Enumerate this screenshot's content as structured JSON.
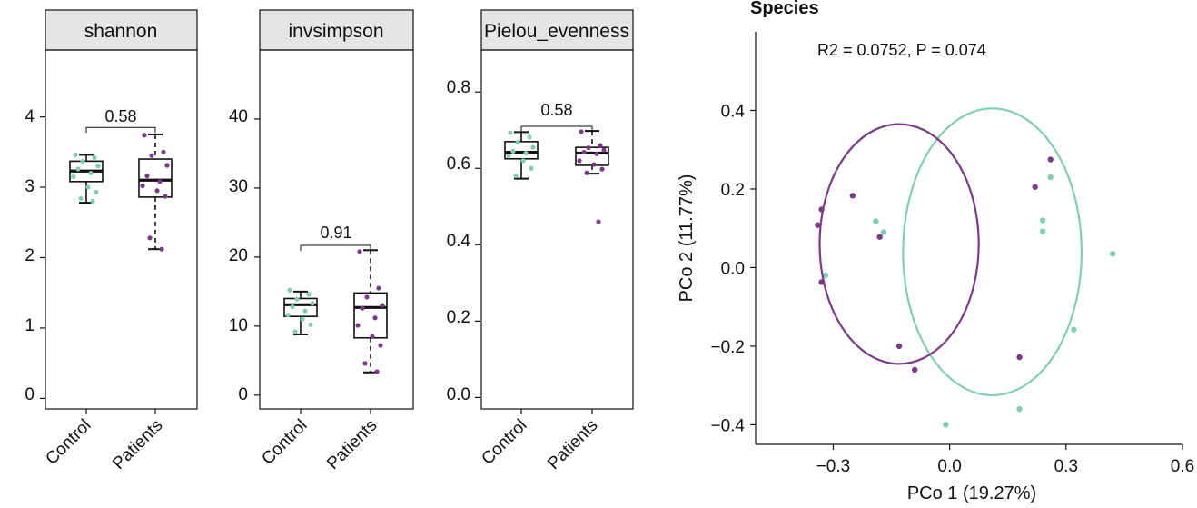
{
  "colors": {
    "control": "#7fcdb4",
    "patients": "#7b3a88",
    "strip_fill": "#e5e5e5",
    "ink": "#111111"
  },
  "chart_data": [
    {
      "type": "box",
      "strip_label": "shannon",
      "categories": [
        "Control",
        "Patients"
      ],
      "ylim": [
        -0.15,
        4.95
      ],
      "yticks": [
        "0",
        "1",
        "2",
        "3",
        "4"
      ],
      "boxes": [
        {
          "min": 2.78,
          "q1": 3.08,
          "median": 3.23,
          "q3": 3.37,
          "max": 3.46
        },
        {
          "min": 2.12,
          "q1": 2.86,
          "median": 3.1,
          "q3": 3.4,
          "max": 3.75
        }
      ],
      "points": [
        [
          3.46,
          3.42,
          3.37,
          3.3,
          3.26,
          3.2,
          3.15,
          3.0,
          2.93,
          2.84,
          2.8
        ],
        [
          3.74,
          3.5,
          3.45,
          3.31,
          3.16,
          3.08,
          3.02,
          2.95,
          2.87,
          2.28,
          2.12
        ]
      ],
      "comparison": "0.58",
      "comparison_y": 3.85
    },
    {
      "type": "box",
      "strip_label": "invsimpson",
      "categories": [
        "Control",
        "Patients"
      ],
      "ylim": [
        -2.0,
        50.0
      ],
      "yticks": [
        "0",
        "10",
        "20",
        "30",
        "40"
      ],
      "boxes": [
        {
          "min": 8.8,
          "q1": 11.4,
          "median": 13.1,
          "q3": 14.0,
          "max": 15.0
        },
        {
          "min": 3.3,
          "q1": 8.3,
          "median": 12.7,
          "q3": 14.8,
          "max": 21.0
        }
      ],
      "points": [
        [
          15.2,
          14.6,
          13.9,
          13.3,
          12.8,
          12.2,
          11.6,
          11.0,
          10.2,
          9.2
        ],
        [
          20.8,
          15.5,
          14.2,
          13.0,
          12.6,
          11.2,
          10.1,
          8.5,
          7.2,
          4.6,
          3.4
        ]
      ],
      "comparison": "0.91",
      "comparison_y": 21.7
    },
    {
      "type": "box",
      "strip_label": "Pielou_evenness",
      "categories": [
        "Control",
        "Patients"
      ],
      "ylim": [
        -0.03,
        0.91
      ],
      "yticks": [
        "0.0",
        "0.2",
        "0.4",
        "0.6",
        "0.8"
      ],
      "boxes": [
        {
          "min": 0.573,
          "q1": 0.625,
          "median": 0.642,
          "q3": 0.67,
          "max": 0.695
        },
        {
          "min": 0.586,
          "q1": 0.608,
          "median": 0.64,
          "q3": 0.655,
          "max": 0.698
        }
      ],
      "points": [
        [
          0.693,
          0.682,
          0.668,
          0.655,
          0.645,
          0.64,
          0.632,
          0.62,
          0.6,
          0.58
        ],
        [
          0.696,
          0.66,
          0.654,
          0.648,
          0.642,
          0.638,
          0.62,
          0.61,
          0.598,
          0.588,
          0.46
        ]
      ],
      "comparison": "0.58",
      "comparison_y": 0.71
    },
    {
      "type": "scatter",
      "title": "Species",
      "xlabel": "PCo 1 (19.27%)",
      "ylabel": "PCo 2 (11.77%)",
      "xlim": [
        -0.5,
        0.6
      ],
      "ylim": [
        -0.45,
        0.6
      ],
      "xticks": [
        -0.3,
        0.0,
        0.3,
        0.6
      ],
      "xtick_labels": [
        "−0.3",
        "0.0",
        "0.3",
        "0.6"
      ],
      "yticks": [
        -0.4,
        -0.2,
        0.0,
        0.2,
        0.4
      ],
      "ytick_labels": [
        "−0.4",
        "−0.2",
        "0.0",
        "0.2",
        "0.4"
      ],
      "annotation": "R2 = 0.0752, P = 0.074",
      "series": [
        {
          "group": "control",
          "points": [
            [
              -0.32,
              -0.02
            ],
            [
              -0.19,
              0.118
            ],
            [
              -0.17,
              0.09
            ],
            [
              0.26,
              0.23
            ],
            [
              0.24,
              0.12
            ],
            [
              0.24,
              0.092
            ],
            [
              0.42,
              0.035
            ],
            [
              0.32,
              -0.158
            ],
            [
              0.18,
              -0.36
            ],
            [
              -0.01,
              -0.4
            ]
          ],
          "ellipse": {
            "cx": 0.11,
            "cy": 0.04,
            "rx": 0.23,
            "ry": 0.365
          }
        },
        {
          "group": "patients",
          "points": [
            [
              -0.33,
              0.148
            ],
            [
              -0.25,
              0.183
            ],
            [
              -0.34,
              0.108
            ],
            [
              -0.18,
              0.078
            ],
            [
              -0.33,
              -0.037
            ],
            [
              -0.09,
              -0.26
            ],
            [
              -0.13,
              -0.2
            ],
            [
              0.26,
              0.275
            ],
            [
              0.22,
              0.205
            ],
            [
              0.18,
              -0.228
            ]
          ],
          "ellipse": {
            "cx": -0.13,
            "cy": 0.06,
            "rx": 0.205,
            "ry": 0.305
          }
        }
      ]
    }
  ]
}
